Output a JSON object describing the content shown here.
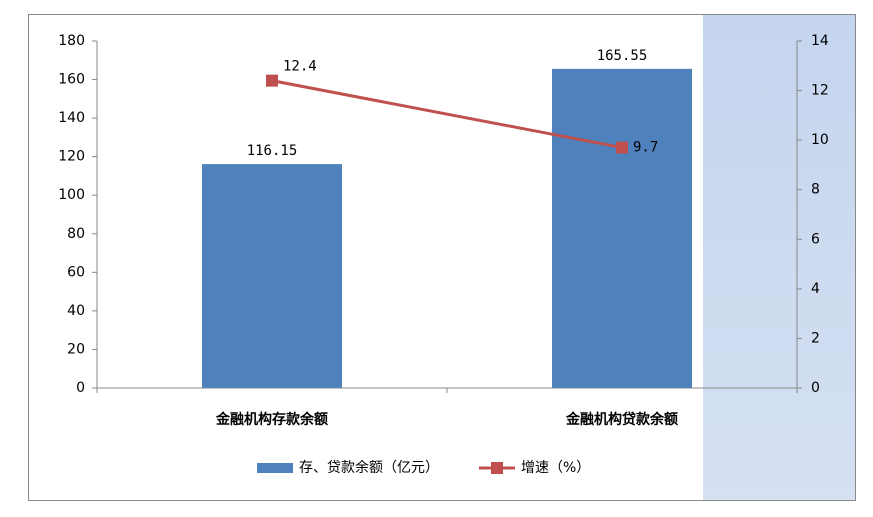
{
  "chart_data": {
    "type": "bar-line",
    "categories": [
      "金融机构存款余额",
      "金融机构贷款余额"
    ],
    "series": [
      {
        "name": "存、贷款余额（亿元）",
        "color": "#4f81bd",
        "type": "bar",
        "values": [
          116.15,
          165.55
        ]
      },
      {
        "name": "增速（%）",
        "color": "#c0504d",
        "type": "line",
        "axis": "y2",
        "values": [
          12.4,
          9.7
        ]
      }
    ],
    "ylim": [
      0,
      180
    ],
    "yticks": [
      0,
      20,
      40,
      60,
      80,
      100,
      120,
      140,
      160,
      180
    ],
    "y2lim": [
      0,
      14
    ],
    "y2ticks": [
      0,
      2,
      4,
      6,
      8,
      10,
      12,
      14
    ],
    "legend": "bottom"
  }
}
